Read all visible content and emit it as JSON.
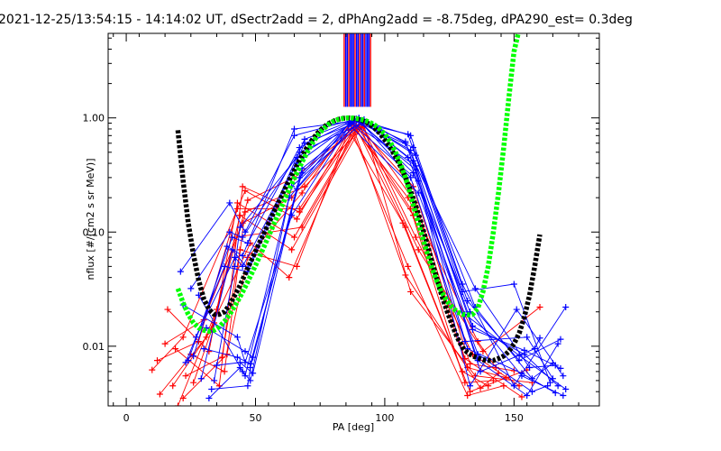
{
  "chart_data": {
    "type": "line",
    "title": "2021-12-25/13:54:15 - 14:14:02 UT, dSectr2add = 2, dPhAng2add = -8.75deg, dPA290_est=   0.3deg",
    "xlabel": "PA [deg]",
    "ylabel": "nflux [#/(cm2 s sr MeV)]",
    "xlim": [
      -7,
      183
    ],
    "ylim": [
      0.003,
      5.5
    ],
    "yscale": "log",
    "grid": false,
    "xticks": [
      {
        "value": 0,
        "label": "0"
      },
      {
        "value": 50,
        "label": "50"
      },
      {
        "value": 100,
        "label": "100"
      },
      {
        "value": 150,
        "label": "150"
      }
    ],
    "yticks": [
      {
        "value": 0.01,
        "label": "0.01"
      },
      {
        "value": 0.1,
        "label": "0.10"
      },
      {
        "value": 1,
        "label": "1.00"
      }
    ],
    "colors": {
      "red": "#ff0000",
      "blue": "#0000ff",
      "black": "#000000",
      "green": "#00ff00"
    },
    "vertical_marks": {
      "color_cycle": [
        "red",
        "blue",
        "blue",
        "red",
        "blue",
        "blue",
        "blue",
        "red",
        "blue",
        "blue"
      ],
      "x": [
        84.3,
        84.9,
        85.5,
        86.1,
        86.7,
        87.3,
        87.9,
        88.5,
        89.1,
        89.7,
        90.3,
        90.9,
        91.5,
        92.1,
        92.7,
        93.3,
        93.9,
        94.5
      ],
      "y_range": [
        1.25,
        5.5
      ]
    },
    "red_series": [
      {
        "x": [
          10,
          22,
          46,
          66,
          88,
          108,
          130,
          140
        ],
        "y": [
          0.0062,
          0.012,
          0.23,
          0.13,
          0.91,
          0.11,
          0.006,
          0.0045
        ]
      },
      {
        "x": [
          12,
          28,
          43,
          67,
          89,
          110,
          131,
          142
        ],
        "y": [
          0.0075,
          0.011,
          0.16,
          0.16,
          0.86,
          0.16,
          0.0048,
          0.005
        ]
      },
      {
        "x": [
          15,
          30,
          45,
          64,
          87,
          109,
          132,
          146
        ],
        "y": [
          0.0105,
          0.017,
          0.12,
          0.2,
          0.8,
          0.05,
          0.0037,
          0.0045
        ]
      },
      {
        "x": [
          18,
          33,
          42,
          68,
          90,
          111,
          133,
          150
        ],
        "y": [
          0.0045,
          0.014,
          0.09,
          0.11,
          0.83,
          0.25,
          0.007,
          0.0061
        ]
      },
      {
        "x": [
          20,
          35,
          47,
          65,
          91,
          112,
          134,
          152
        ],
        "y": [
          0.003,
          0.021,
          0.19,
          0.3,
          0.88,
          0.09,
          0.0085,
          0.0045
        ]
      },
      {
        "x": [
          23,
          37,
          44,
          66,
          86,
          107,
          133,
          155
        ],
        "y": [
          0.0055,
          0.008,
          0.07,
          0.05,
          0.78,
          0.12,
          0.004,
          0.0062
        ]
      },
      {
        "x": [
          25,
          38,
          46,
          69,
          92,
          110,
          135,
          157
        ],
        "y": [
          0.0085,
          0.006,
          0.15,
          0.25,
          0.85,
          0.03,
          0.0055,
          0.0048
        ]
      },
      {
        "x": [
          13,
          31,
          48,
          63,
          88,
          109,
          136,
          143
        ],
        "y": [
          0.0038,
          0.012,
          0.08,
          0.04,
          0.82,
          0.2,
          0.011,
          0.0065
        ]
      },
      {
        "x": [
          19,
          36,
          45,
          67,
          90,
          113,
          138,
          160
        ],
        "y": [
          0.0095,
          0.0045,
          0.25,
          0.15,
          0.87,
          0.07,
          0.009,
          0.022
        ]
      },
      {
        "x": [
          16,
          32,
          43,
          65,
          89,
          111,
          132,
          147
        ],
        "y": [
          0.021,
          0.009,
          0.18,
          0.09,
          0.79,
          0.14,
          0.0065,
          0.0053
        ]
      },
      {
        "x": [
          22,
          39,
          47,
          68,
          87,
          108,
          137,
          144
        ],
        "y": [
          0.0035,
          0.0085,
          0.06,
          0.22,
          0.92,
          0.042,
          0.0043,
          0.0058
        ]
      },
      {
        "x": [
          26,
          34,
          44,
          64,
          91,
          112,
          131,
          153
        ],
        "y": [
          0.0048,
          0.016,
          0.14,
          0.07,
          0.84,
          0.18,
          0.0078,
          0.0036
        ]
      }
    ],
    "blue_series": [
      {
        "x": [
          21,
          40,
          46,
          65,
          89,
          110,
          130,
          150,
          170
        ],
        "y": [
          0.045,
          0.18,
          0.1,
          0.7,
          0.98,
          0.7,
          0.035,
          0.0045,
          0.022
        ]
      },
      {
        "x": [
          24,
          41,
          47,
          67,
          88,
          111,
          132,
          152,
          168
        ],
        "y": [
          0.0075,
          0.09,
          0.08,
          0.55,
          0.95,
          0.55,
          0.025,
          0.0075,
          0.0115
        ]
      },
      {
        "x": [
          27,
          42,
          45,
          66,
          90,
          109,
          133,
          153,
          169
        ],
        "y": [
          0.012,
          0.06,
          0.05,
          0.4,
          1,
          0.45,
          0.02,
          0.0055,
          0.0037
        ]
      },
      {
        "x": [
          30,
          43,
          48,
          68,
          87,
          112,
          134,
          154,
          167
        ],
        "y": [
          0.0095,
          0.008,
          0.007,
          0.33,
          0.92,
          0.38,
          0.015,
          0.0085,
          0.0045
        ]
      },
      {
        "x": [
          32,
          44,
          46,
          64,
          91,
          110,
          131,
          155,
          165
        ],
        "y": [
          0.0035,
          0.0065,
          0.0055,
          0.25,
          0.9,
          0.3,
          0.011,
          0.012,
          0.0052
        ]
      },
      {
        "x": [
          23,
          38,
          47,
          69,
          92,
          108,
          135,
          156,
          166
        ],
        "y": [
          0.0072,
          0.05,
          0.045,
          0.6,
          0.97,
          0.6,
          0.032,
          0.0065,
          0.0068
        ]
      },
      {
        "x": [
          28,
          45,
          48,
          63,
          86,
          113,
          136,
          157,
          163
        ],
        "y": [
          0.028,
          0.006,
          0.005,
          0.2,
          0.88,
          0.22,
          0.0085,
          0.004,
          0.0045
        ]
      },
      {
        "x": [
          34,
          42,
          44,
          66,
          90,
          111,
          137,
          158,
          160
        ],
        "y": [
          0.005,
          0.05,
          0.11,
          0.45,
          0.99,
          0.42,
          0.006,
          0.0095,
          0.0118
        ]
      },
      {
        "x": [
          31,
          46,
          49,
          67,
          89,
          112,
          133,
          151,
          169
        ],
        "y": [
          0.0145,
          0.009,
          0.008,
          0.3,
          0.96,
          0.35,
          0.0045,
          0.021,
          0.0055
        ]
      },
      {
        "x": [
          26,
          39,
          45,
          65,
          88,
          109,
          130,
          150,
          164
        ],
        "y": [
          0.0082,
          0.075,
          0.062,
          0.8,
          0.94,
          0.72,
          0.03,
          0.035,
          0.0048
        ]
      },
      {
        "x": [
          33,
          47,
          48,
          68,
          91,
          110,
          134,
          154,
          168
        ],
        "y": [
          0.0042,
          0.0045,
          0.0065,
          0.36,
          0.93,
          0.52,
          0.014,
          0.0092,
          0.0064
        ]
      },
      {
        "x": [
          22,
          43,
          46,
          64,
          87,
          113,
          132,
          153,
          166
        ],
        "y": [
          0.023,
          0.012,
          0.0072,
          0.14,
          0.9,
          0.28,
          0.0095,
          0.0058,
          0.0039
        ]
      },
      {
        "x": [
          29,
          41,
          47,
          69,
          89,
          108,
          136,
          155,
          167
        ],
        "y": [
          0.0052,
          0.07,
          0.048,
          0.65,
          0.98,
          0.62,
          0.0075,
          0.0037,
          0.0105
        ]
      },
      {
        "x": [
          35,
          44,
          49,
          66,
          90,
          111,
          131,
          152,
          170
        ],
        "y": [
          0.0068,
          0.0072,
          0.0058,
          0.24,
          0.95,
          0.33,
          0.019,
          0.0083,
          0.0042
        ]
      },
      {
        "x": [
          25,
          40,
          45,
          67,
          92,
          112,
          135,
          157,
          165
        ],
        "y": [
          0.032,
          0.1,
          0.09,
          0.5,
          0.91,
          0.47,
          0.022,
          0.0052,
          0.0071
        ]
      }
    ],
    "black_curve": {
      "x": [
        20,
        22,
        24,
        26,
        28,
        30,
        32,
        34,
        36,
        38,
        40,
        42,
        44,
        46,
        48,
        50,
        52,
        54,
        56,
        58,
        60,
        62,
        64,
        66,
        68,
        70,
        72,
        74,
        76,
        78,
        80,
        82,
        84,
        86,
        88,
        90,
        92,
        94,
        96,
        98,
        100,
        102,
        104,
        106,
        108,
        110,
        112,
        114,
        116,
        118,
        120,
        122,
        124,
        126,
        128,
        130,
        132,
        134,
        136,
        138,
        140,
        142,
        144,
        146,
        148,
        150,
        152,
        154,
        156,
        158,
        160
      ],
      "y": [
        0.78,
        0.28,
        0.12,
        0.063,
        0.038,
        0.026,
        0.021,
        0.019,
        0.019,
        0.02,
        0.023,
        0.028,
        0.034,
        0.043,
        0.054,
        0.068,
        0.085,
        0.106,
        0.132,
        0.165,
        0.205,
        0.255,
        0.315,
        0.385,
        0.465,
        0.555,
        0.645,
        0.735,
        0.815,
        0.885,
        0.935,
        0.972,
        0.992,
        1,
        0.992,
        0.972,
        0.935,
        0.885,
        0.815,
        0.735,
        0.645,
        0.555,
        0.465,
        0.38,
        0.3,
        0.23,
        0.17,
        0.122,
        0.085,
        0.058,
        0.04,
        0.028,
        0.0205,
        0.0155,
        0.012,
        0.0098,
        0.0088,
        0.0082,
        0.0079,
        0.0076,
        0.0075,
        0.0075,
        0.0078,
        0.0082,
        0.009,
        0.0105,
        0.013,
        0.018,
        0.028,
        0.05,
        0.095
      ]
    },
    "green_curve": {
      "x": [
        20,
        22,
        24,
        26,
        28,
        30,
        32,
        34,
        36,
        38,
        40,
        42,
        44,
        46,
        48,
        50,
        52,
        54,
        56,
        58,
        60,
        62,
        64,
        66,
        68,
        70,
        72,
        74,
        76,
        78,
        80,
        82,
        84,
        86,
        88,
        90,
        92,
        94,
        96,
        98,
        100,
        102,
        104,
        106,
        108,
        110,
        112,
        114,
        116,
        118,
        120,
        122,
        124,
        126,
        128,
        130,
        132,
        134,
        136,
        138,
        140,
        142,
        144,
        146,
        148,
        150,
        152,
        154,
        156,
        158,
        160
      ],
      "y": [
        0.032,
        0.024,
        0.019,
        0.016,
        0.0145,
        0.0138,
        0.0135,
        0.0138,
        0.0148,
        0.0165,
        0.019,
        0.0225,
        0.027,
        0.033,
        0.041,
        0.051,
        0.064,
        0.081,
        0.103,
        0.13,
        0.165,
        0.21,
        0.265,
        0.33,
        0.41,
        0.5,
        0.6,
        0.7,
        0.79,
        0.87,
        0.93,
        0.97,
        0.99,
        1,
        0.995,
        0.98,
        0.955,
        0.92,
        0.87,
        0.8,
        0.72,
        0.62,
        0.51,
        0.4,
        0.3,
        0.21,
        0.145,
        0.1,
        0.07,
        0.05,
        0.038,
        0.03,
        0.025,
        0.022,
        0.02,
        0.019,
        0.0188,
        0.019,
        0.0215,
        0.03,
        0.05,
        0.1,
        0.22,
        0.55,
        1.5,
        3.8,
        6,
        6,
        6,
        6,
        6
      ]
    }
  }
}
